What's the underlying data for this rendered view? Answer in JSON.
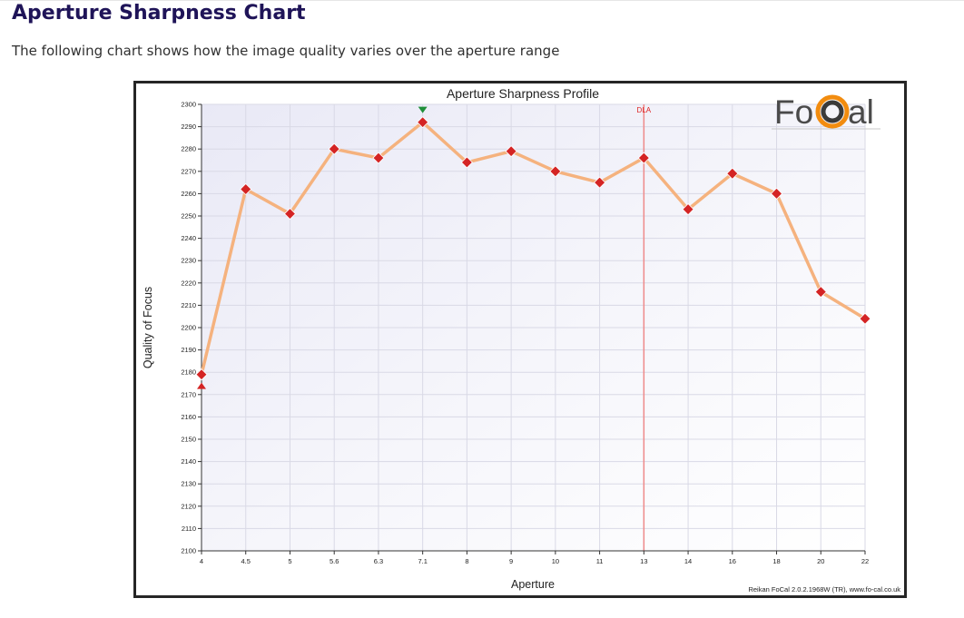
{
  "heading": "Aperture Sharpness Chart",
  "intro": "The following chart shows how the image quality varies over the aperture range",
  "logo": {
    "text_left": "Fo",
    "text_right": "al",
    "ring_colors": [
      "#f28c0f",
      "#3a3a3a"
    ]
  },
  "chart_data": {
    "type": "line",
    "title": "Aperture Sharpness Profile",
    "xlabel": "Aperture",
    "ylabel": "Quality of Focus",
    "categories": [
      "4",
      "4.5",
      "5",
      "5.6",
      "6.3",
      "7.1",
      "8",
      "9",
      "10",
      "11",
      "13",
      "14",
      "16",
      "18",
      "20",
      "22"
    ],
    "values": [
      2179,
      2262,
      2251,
      2280,
      2276,
      2292,
      2274,
      2279,
      2270,
      2265,
      2276,
      2253,
      2269,
      2260,
      2216,
      2204
    ],
    "ylim": [
      2100,
      2300
    ],
    "yticks": [
      "2100",
      "2110",
      "2120",
      "2130",
      "2140",
      "2150",
      "2160",
      "2170",
      "2180",
      "2190",
      "2200",
      "2210",
      "2220",
      "2230",
      "2240",
      "2250",
      "2260",
      "2270",
      "2280",
      "2290",
      "2300"
    ],
    "grid": true,
    "line_color": "#f5b27e",
    "marker_color": "#d42424",
    "max_marker": {
      "category": "7.1",
      "color": "#1f8f3a"
    },
    "min_marker": {
      "category": "4",
      "color": "#d42424"
    },
    "reference_line": {
      "label": "DLA",
      "category": "13",
      "color": "#ef8a8a"
    },
    "credit": "Reikan FoCal 2.0.2.1968W (TR), www.fo-cal.co.uk"
  }
}
